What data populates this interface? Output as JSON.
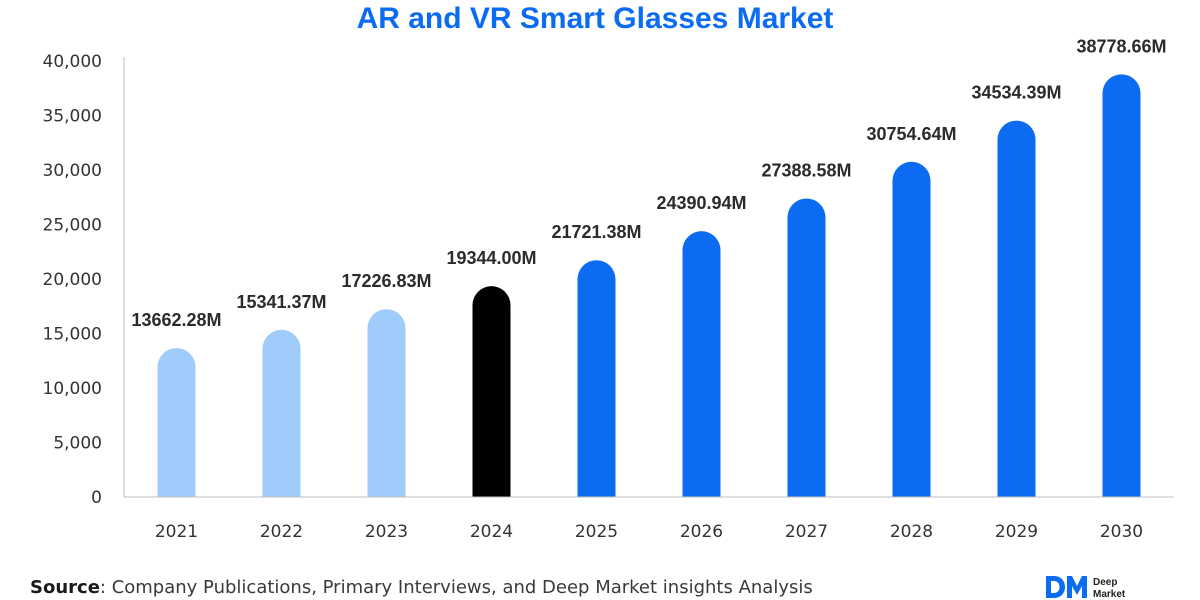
{
  "chart_data": {
    "type": "bar",
    "title": "AR and VR Smart Glasses Market",
    "categories": [
      "2021",
      "2022",
      "2023",
      "2024",
      "2025",
      "2026",
      "2027",
      "2028",
      "2029",
      "2030"
    ],
    "values": [
      13662.28,
      15341.37,
      17226.83,
      19344.0,
      21721.38,
      24390.94,
      27388.58,
      30754.64,
      34534.39,
      38778.66
    ],
    "value_labels": [
      "13662.28M",
      "15341.37M",
      "17226.83M",
      "19344.00M",
      "21721.38M",
      "24390.94M",
      "27388.58M",
      "30754.64M",
      "34534.39M",
      "38778.66M"
    ],
    "y_ticks": [
      "0",
      "5,000",
      "10,000",
      "15,000",
      "20,000",
      "25,000",
      "30,000",
      "35,000",
      "40,000"
    ],
    "ylim": [
      0,
      40000
    ],
    "xlabel": "",
    "ylabel": "",
    "grid": false,
    "legend": "none",
    "bar_colors": [
      "#9fccfa",
      "#9fccfa",
      "#9fccfa",
      "#000000",
      "#0b6cf2",
      "#0b6cf2",
      "#0b6cf2",
      "#0b6cf2",
      "#0b6cf2",
      "#0b6cf2"
    ]
  },
  "title_color": "#0b6cf2",
  "source": {
    "label": "Source",
    "text": ": Company Publications, Primary Interviews, and Deep Market insights Analysis"
  },
  "brand": {
    "line1": "Deep",
    "line2": "Market",
    "logo_color": "#0b6cf2"
  }
}
